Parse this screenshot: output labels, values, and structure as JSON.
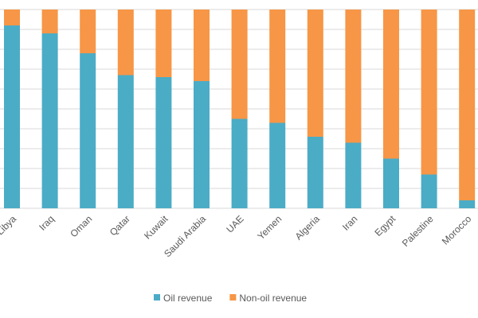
{
  "chart_data": {
    "type": "bar",
    "stacked": true,
    "categories": [
      "Libya",
      "Iraq",
      "Oman",
      "Qatar",
      "Kuwait",
      "Saudi Arabia",
      "UAE",
      "Yemen",
      "Algeria",
      "Iran",
      "Egypt",
      "Palestine",
      "Morocco"
    ],
    "series": [
      {
        "name": "Oil revenue",
        "color": "#4bacc6",
        "values": [
          92,
          88,
          78,
          67,
          66,
          64,
          45,
          43,
          36,
          33,
          25,
          17,
          4
        ]
      },
      {
        "name": "Non-oil revenue",
        "color": "#f79646",
        "values": [
          8,
          12,
          22,
          33,
          34,
          36,
          55,
          57,
          64,
          67,
          75,
          83,
          96
        ]
      }
    ],
    "ylim": [
      0,
      100
    ],
    "yticks": [
      0,
      10,
      20,
      30,
      40,
      50,
      60,
      70,
      80,
      90,
      100
    ],
    "grid": true,
    "legend": "bottom"
  }
}
